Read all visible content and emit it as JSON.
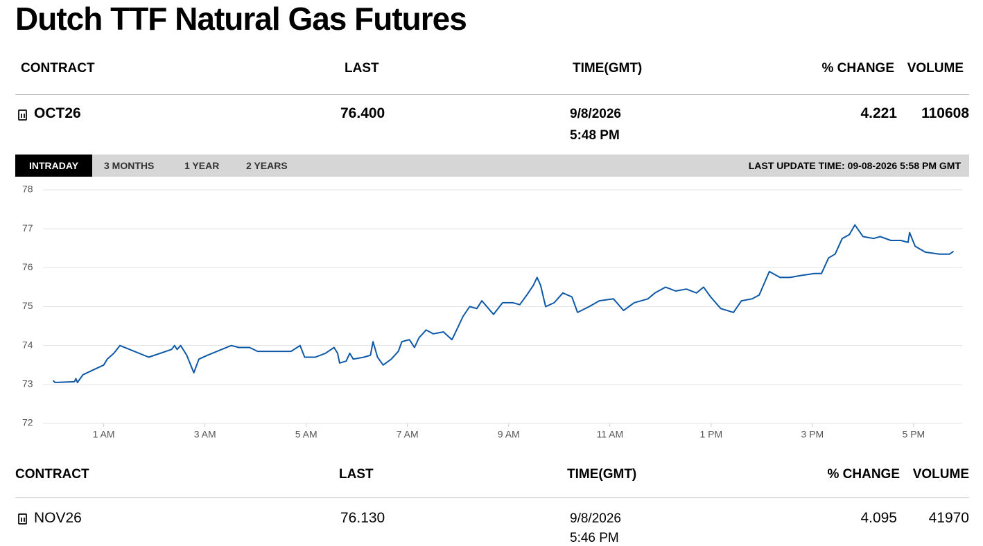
{
  "title": "Dutch TTF Natural Gas Futures",
  "tables": [
    {
      "columns": [
        "CONTRACT",
        "LAST",
        "TIME(GMT)",
        "% CHANGE",
        "VOLUME"
      ],
      "rows": [
        {
          "contract": "OCT26",
          "last": "76.400",
          "date": "9/8/2026",
          "time": "5:48 PM",
          "change": "4.221",
          "volume": "110608"
        }
      ]
    },
    {
      "columns": [
        "CONTRACT",
        "LAST",
        "TIME(GMT)",
        "% CHANGE",
        "VOLUME"
      ],
      "rows": [
        {
          "contract": "NOV26",
          "last": "76.130",
          "date": "9/8/2026",
          "time": "5:46 PM",
          "change": "4.095",
          "volume": "41970"
        }
      ]
    }
  ],
  "tabs": [
    "INTRADAY",
    "3 MONTHS",
    "1 YEAR",
    "2 YEARS"
  ],
  "last_update": "LAST UPDATE TIME: 09-08-2026 5:58 PM GMT",
  "chart_data": {
    "type": "line",
    "x": [
      0.0,
      0.04,
      0.42,
      0.45,
      0.48,
      0.59,
      1.0,
      1.07,
      1.2,
      1.32,
      1.89,
      2.34,
      2.4,
      2.45,
      2.52,
      2.64,
      2.78,
      2.88,
      3.05,
      3.52,
      3.67,
      3.88,
      4.04,
      4.7,
      4.88,
      4.97,
      5.18,
      5.38,
      5.55,
      5.62,
      5.66,
      5.79,
      5.86,
      5.93,
      6.14,
      6.27,
      6.32,
      6.41,
      6.52,
      6.68,
      6.82,
      6.89,
      7.04,
      7.14,
      7.23,
      7.37,
      7.51,
      7.71,
      7.88,
      7.99,
      8.1,
      8.23,
      8.37,
      8.47,
      8.7,
      8.88,
      9.08,
      9.22,
      9.36,
      9.49,
      9.56,
      9.63,
      9.73,
      9.9,
      10.07,
      10.25,
      10.36,
      10.59,
      10.79,
      11.07,
      11.27,
      11.48,
      11.75,
      11.89,
      12.1,
      12.3,
      12.51,
      12.71,
      12.85,
      12.99,
      13.19,
      13.44,
      13.6,
      13.81,
      13.95,
      14.15,
      14.36,
      14.56,
      14.77,
      15.04,
      15.18,
      15.32,
      15.45,
      15.59,
      15.73,
      15.84,
      16.0,
      16.21,
      16.34,
      16.55,
      16.75,
      16.89,
      16.92,
      17.03,
      17.23,
      17.51,
      17.71,
      17.79
    ],
    "series": [
      {
        "name": "OCT26",
        "color": "#0d58a6",
        "values": [
          73.1,
          73.05,
          73.07,
          73.15,
          73.05,
          73.25,
          73.5,
          73.65,
          73.8,
          74.0,
          73.7,
          73.9,
          74.0,
          73.9,
          74.0,
          73.75,
          73.3,
          73.65,
          73.75,
          74.0,
          73.95,
          73.95,
          73.85,
          73.85,
          74.0,
          73.7,
          73.7,
          73.8,
          73.95,
          73.8,
          73.55,
          73.6,
          73.8,
          73.65,
          73.7,
          73.75,
          74.1,
          73.7,
          73.5,
          73.65,
          73.85,
          74.1,
          74.15,
          73.95,
          74.2,
          74.4,
          74.3,
          74.35,
          74.15,
          74.45,
          74.75,
          75.0,
          74.95,
          75.15,
          74.8,
          75.1,
          75.1,
          75.05,
          75.3,
          75.55,
          75.75,
          75.55,
          75.0,
          75.1,
          75.35,
          75.25,
          74.85,
          75.0,
          75.15,
          75.2,
          74.9,
          75.1,
          75.2,
          75.35,
          75.5,
          75.4,
          75.45,
          75.35,
          75.5,
          75.25,
          74.95,
          74.85,
          75.15,
          75.2,
          75.3,
          75.9,
          75.75,
          75.75,
          75.8,
          75.85,
          75.85,
          76.25,
          76.35,
          76.75,
          76.85,
          77.1,
          76.8,
          76.75,
          76.8,
          76.7,
          76.7,
          76.65,
          76.9,
          76.55,
          76.4,
          76.35,
          76.35,
          76.42
        ]
      }
    ],
    "xlim": [
      -0.2,
      17.96
    ],
    "xticks": [
      {
        "value": 1,
        "label": "1 AM"
      },
      {
        "value": 3,
        "label": "3 AM"
      },
      {
        "value": 5,
        "label": "5 AM"
      },
      {
        "value": 7,
        "label": "7 AM"
      },
      {
        "value": 9,
        "label": "9 AM"
      },
      {
        "value": 11,
        "label": "11 AM"
      },
      {
        "value": 13,
        "label": "1 PM"
      },
      {
        "value": 15,
        "label": "3 PM"
      },
      {
        "value": 17,
        "label": "5 PM"
      }
    ],
    "ylim": [
      72,
      78
    ],
    "yticks": [
      72,
      73,
      74,
      75,
      76,
      77,
      78
    ],
    "grid": true
  }
}
